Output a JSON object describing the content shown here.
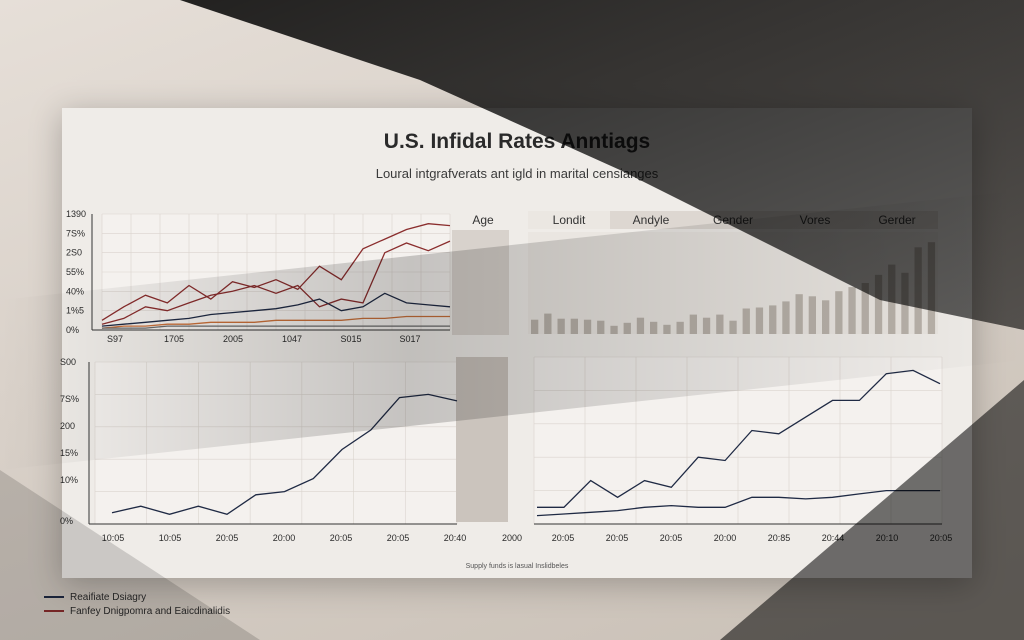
{
  "header": {
    "title": "U.S. Infidal Rates Anntiags",
    "subtitle": "Loural intgrafverats ant igld in marital censianges"
  },
  "tabs": {
    "age_label": "Age",
    "items": [
      "Londit",
      "Andyle",
      "Gender",
      "Vores",
      "Gerder"
    ],
    "active_index": 0
  },
  "footer_note": "Supply funds is lasual Inslidbeles",
  "legend": [
    {
      "label": "Reaifiate Dsiagry",
      "color": "#1f2a44"
    },
    {
      "label": "Fanfey Dnigpomra and Eaicdinalidis",
      "color": "#8a2d2d"
    }
  ],
  "colors": {
    "navy": "#1f2a44",
    "red": "#8a2d2d",
    "orange": "#c9703a",
    "bar": "#b9b2aa",
    "grid": "#dad4ce"
  },
  "chart_data": [
    {
      "id": "top-left",
      "type": "line",
      "y_tick_labels": [
        "0%",
        "1%5",
        "40%",
        "55%",
        "2S0",
        "7S%",
        "1390"
      ],
      "x_tick_labels": [
        "S97",
        "1705",
        "2005",
        "1047",
        "S015",
        "S017"
      ],
      "ylim": [
        0,
        6
      ],
      "series": [
        {
          "name": "red-upper",
          "color": "#8a2d2d",
          "values": [
            0.5,
            1.2,
            1.8,
            1.4,
            2.3,
            1.6,
            2.5,
            2.2,
            2.6,
            2.1,
            3.3,
            2.6,
            4.2,
            4.7,
            5.2,
            5.5,
            5.4
          ]
        },
        {
          "name": "red-lower",
          "color": "#8a2d2d",
          "values": [
            0.3,
            0.6,
            1.2,
            1.0,
            1.4,
            1.8,
            2.0,
            2.3,
            1.9,
            2.3,
            1.2,
            1.6,
            1.4,
            4.0,
            4.5,
            4.1,
            4.6
          ]
        },
        {
          "name": "navy",
          "color": "#1f2a44",
          "values": [
            0.2,
            0.3,
            0.4,
            0.5,
            0.6,
            0.8,
            0.9,
            1.0,
            1.1,
            1.3,
            1.6,
            1.0,
            1.2,
            1.9,
            1.4,
            1.3,
            1.2
          ]
        },
        {
          "name": "orange",
          "color": "#c9703a",
          "values": [
            0.1,
            0.2,
            0.2,
            0.3,
            0.3,
            0.4,
            0.4,
            0.4,
            0.5,
            0.5,
            0.5,
            0.5,
            0.6,
            0.6,
            0.7,
            0.7,
            0.7
          ]
        },
        {
          "name": "gray-base",
          "color": "#6b6b6b",
          "values": [
            0.1,
            0.1,
            0.1,
            0.2,
            0.2,
            0.2,
            0.2,
            0.2,
            0.2,
            0.2,
            0.2,
            0.2,
            0.2,
            0.2,
            0.2,
            0.2,
            0.2
          ]
        }
      ]
    },
    {
      "id": "top-right",
      "type": "bar",
      "values": [
        1.4,
        2.0,
        1.5,
        1.5,
        1.4,
        1.3,
        0.8,
        1.1,
        1.6,
        1.2,
        0.9,
        1.2,
        1.9,
        1.6,
        1.9,
        1.3,
        2.5,
        2.6,
        2.8,
        3.2,
        3.9,
        3.7,
        3.3,
        4.2,
        4.6,
        5.0,
        5.8,
        6.8,
        6.0,
        8.5,
        9.0
      ],
      "ylim": [
        0,
        10
      ]
    },
    {
      "id": "bottom-left",
      "type": "line",
      "y_tick_labels": [
        "0%",
        "10%",
        "15%",
        "200",
        "7S%",
        "S00"
      ],
      "x_tick_labels": [
        "10:05",
        "10:05",
        "20:05",
        "20:00",
        "20:05",
        "20:05",
        "20:40",
        "2000"
      ],
      "ylim": [
        0,
        5
      ],
      "series": [
        {
          "name": "navy",
          "color": "#1f2a44",
          "values": [
            0.35,
            0.55,
            0.3,
            0.55,
            0.3,
            0.9,
            1.0,
            1.4,
            2.3,
            2.9,
            3.9,
            4.0,
            3.8
          ]
        }
      ]
    },
    {
      "id": "bottom-right",
      "type": "line",
      "x_tick_labels": [
        "20:05",
        "20:05",
        "20:05",
        "20:00",
        "20:85",
        "20:44",
        "20:10",
        "20:05"
      ],
      "ylim": [
        0,
        5
      ],
      "series": [
        {
          "name": "upper",
          "color": "#1f2a44",
          "values": [
            0.5,
            0.5,
            1.3,
            0.8,
            1.3,
            1.1,
            2.0,
            1.9,
            2.8,
            2.7,
            3.2,
            3.7,
            3.7,
            4.5,
            4.6,
            4.2
          ]
        },
        {
          "name": "lower",
          "color": "#1f2a44",
          "values": [
            0.25,
            0.3,
            0.35,
            0.4,
            0.5,
            0.55,
            0.5,
            0.5,
            0.8,
            0.8,
            0.75,
            0.8,
            0.9,
            1.0,
            1.0,
            1.0
          ]
        }
      ]
    }
  ]
}
